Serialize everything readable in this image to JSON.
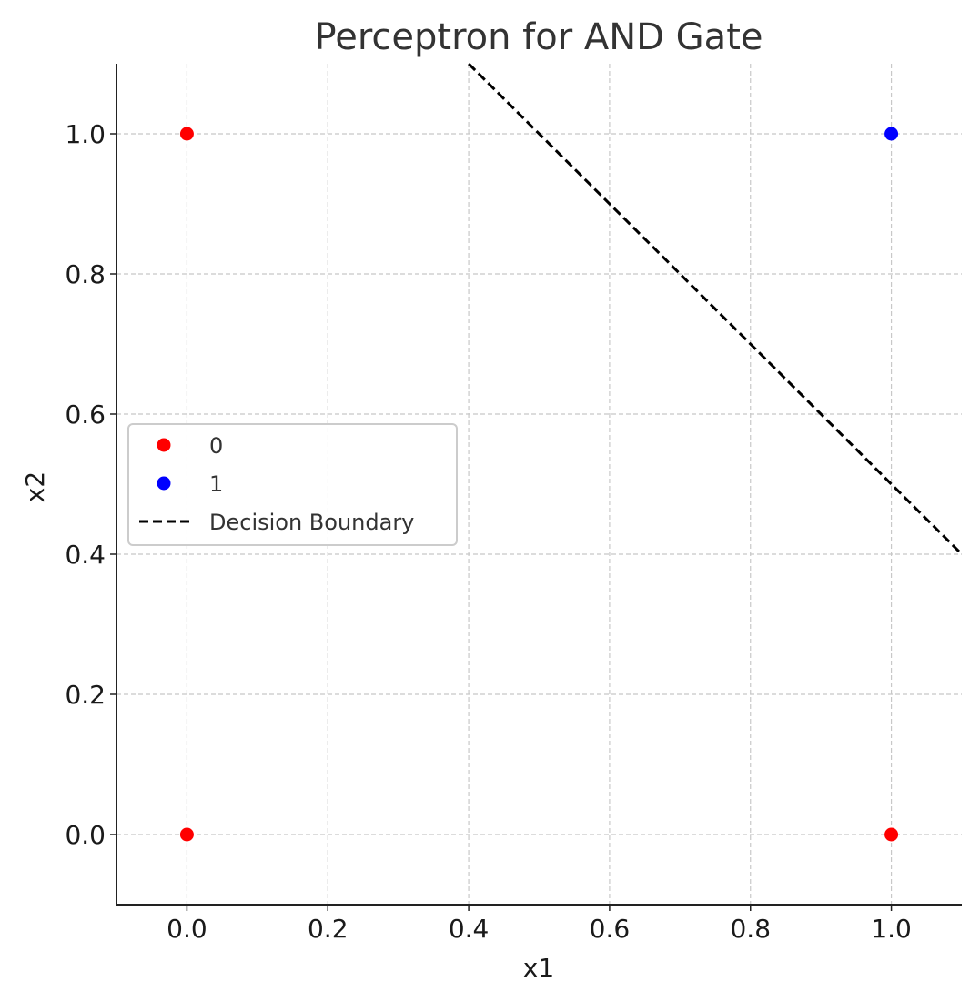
{
  "chart_data": {
    "type": "scatter",
    "title": "Perceptron for AND Gate",
    "xlabel": "x1",
    "ylabel": "x2",
    "xlim": [
      -0.1,
      1.1
    ],
    "ylim": [
      -0.1,
      1.1
    ],
    "grid": true,
    "legend_position": "center-left",
    "xticks": [
      "0.0",
      "0.2",
      "0.4",
      "0.6",
      "0.8",
      "1.0"
    ],
    "yticks": [
      "0.0",
      "0.2",
      "0.4",
      "0.6",
      "0.8",
      "1.0"
    ],
    "series": [
      {
        "name": "0",
        "kind": "scatter",
        "color": "#ff0000",
        "points": [
          {
            "x": 0,
            "y": 0
          },
          {
            "x": 0,
            "y": 1
          },
          {
            "x": 1,
            "y": 0
          }
        ]
      },
      {
        "name": "1",
        "kind": "scatter",
        "color": "#0000ff",
        "points": [
          {
            "x": 1,
            "y": 1
          }
        ]
      },
      {
        "name": "Decision Boundary",
        "kind": "line",
        "style": "dashed",
        "color": "#000000",
        "points": [
          {
            "x": 0.4,
            "y": 1.1
          },
          {
            "x": 1.1,
            "y": 0.4
          }
        ]
      }
    ]
  }
}
